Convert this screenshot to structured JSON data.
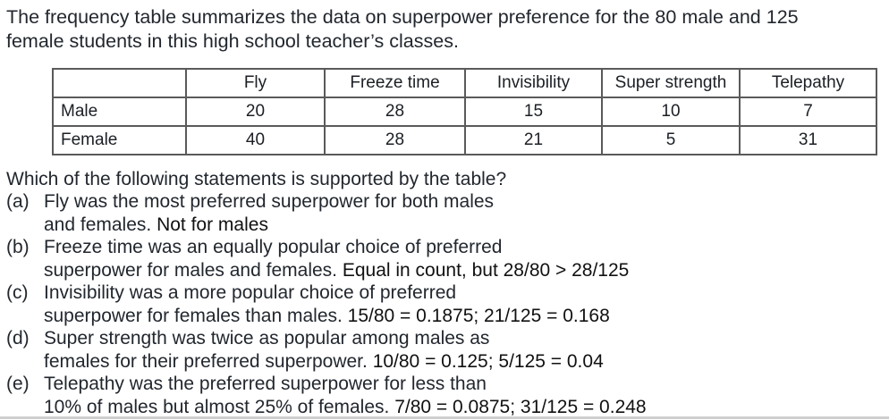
{
  "intro": {
    "line1": "The frequency table summarizes the data on superpower preference for the 80 male and 125",
    "line2": "female students in this high school teacher’s classes."
  },
  "table": {
    "headers": [
      "",
      "Fly",
      "Freeze time",
      "Invisibility",
      "Super strength",
      "Telepathy"
    ],
    "rows": [
      {
        "label": "Male",
        "values": [
          "20",
          "28",
          "15",
          "10",
          "7"
        ]
      },
      {
        "label": "Female",
        "values": [
          "40",
          "28",
          "21",
          "5",
          "31"
        ]
      }
    ]
  },
  "question": "Which of the following statements is supported by the table?",
  "options": [
    {
      "letter": "(a)",
      "line1": "Fly was the most preferred superpower for both males",
      "line2": "and females. ",
      "note": " Not for males"
    },
    {
      "letter": "(b)",
      "line1": "Freeze time was an equally popular choice of preferred",
      "line2": "superpower for males and females. ",
      "note": " Equal in count, but 28/80 > 28/125"
    },
    {
      "letter": "(c)",
      "line1": "Invisibility was a more popular choice of preferred",
      "line2": "superpower for females than males.",
      "note": " 15/80 = 0.1875; 21/125 = 0.168"
    },
    {
      "letter": "(d)",
      "line1": "Super strength was twice as popular among males as",
      "line2": "females for their preferred superpower. ",
      "note": " 10/80 = 0.125; 5/125 = 0.04"
    },
    {
      "letter": "(e)",
      "line1": "Telepathy was the preferred superpower for less than",
      "line2": "10% of males but almost 25% of females.",
      "note": " 7/80 = 0.0875; 31/125 = 0.248"
    }
  ]
}
